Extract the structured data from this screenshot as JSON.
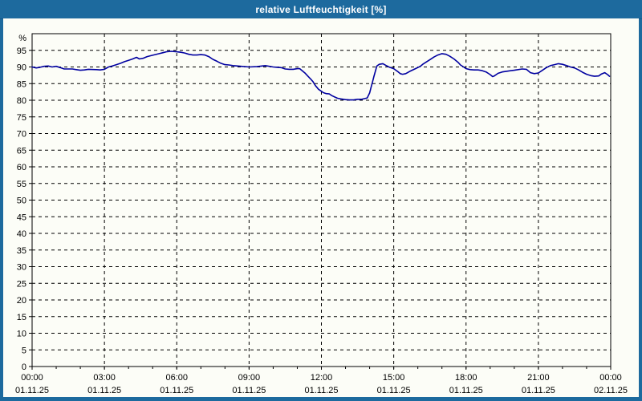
{
  "window": {
    "title": "relative Luftfeuchtigkeit [%]"
  },
  "colors": {
    "frame_blue": "#1d6a9e",
    "plot_background": "#fcfdf7",
    "axis_black": "#000000",
    "series_navy": "#0000a0"
  },
  "chart_data": {
    "type": "line",
    "title": "relative Luftfeuchtigkeit [%]",
    "ylabel": "%",
    "ylim": [
      0,
      100
    ],
    "y_tick_step": 5,
    "y_label_max": 95,
    "xlim_hours": [
      0,
      24
    ],
    "x_minor_tick_hours": 1,
    "grid": "dashed",
    "legend_position": "none",
    "x_ticks": [
      {
        "hour": 0,
        "time": "00:00",
        "date": "01.11.25"
      },
      {
        "hour": 3,
        "time": "03:00",
        "date": "01.11.25"
      },
      {
        "hour": 6,
        "time": "06:00",
        "date": "01.11.25"
      },
      {
        "hour": 9,
        "time": "09:00",
        "date": "01.11.25"
      },
      {
        "hour": 12,
        "time": "12:00",
        "date": "01.11.25"
      },
      {
        "hour": 15,
        "time": "15:00",
        "date": "01.11.25"
      },
      {
        "hour": 18,
        "time": "18:00",
        "date": "01.11.25"
      },
      {
        "hour": 21,
        "time": "21:00",
        "date": "01.11.25"
      },
      {
        "hour": 24,
        "time": "00:00",
        "date": "02.11.25"
      }
    ],
    "series": [
      {
        "name": "relative Luftfeuchtigkeit [%]",
        "color": "#0000a0",
        "points": [
          [
            0,
            90.0
          ],
          [
            0.17,
            89.7
          ],
          [
            0.33,
            89.9
          ],
          [
            0.5,
            90.2
          ],
          [
            0.67,
            90.3
          ],
          [
            0.83,
            90.0
          ],
          [
            1.0,
            90.2
          ],
          [
            1.17,
            89.8
          ],
          [
            1.33,
            89.4
          ],
          [
            1.67,
            89.4
          ],
          [
            1.83,
            89.2
          ],
          [
            2.0,
            89.0
          ],
          [
            2.17,
            89.1
          ],
          [
            2.33,
            89.3
          ],
          [
            2.67,
            89.2
          ],
          [
            2.83,
            89.1
          ],
          [
            3.0,
            89.3
          ],
          [
            3.17,
            90.0
          ],
          [
            3.33,
            90.3
          ],
          [
            3.5,
            90.7
          ],
          [
            3.67,
            91.1
          ],
          [
            3.83,
            91.6
          ],
          [
            4.0,
            92.0
          ],
          [
            4.17,
            92.4
          ],
          [
            4.33,
            92.9
          ],
          [
            4.45,
            92.4
          ],
          [
            4.6,
            92.6
          ],
          [
            4.77,
            93.1
          ],
          [
            4.93,
            93.4
          ],
          [
            5.1,
            93.7
          ],
          [
            5.27,
            94.0
          ],
          [
            5.43,
            94.3
          ],
          [
            5.6,
            94.6
          ],
          [
            5.77,
            94.7
          ],
          [
            5.97,
            94.6
          ],
          [
            6.17,
            94.4
          ],
          [
            6.33,
            94.2
          ],
          [
            6.5,
            93.8
          ],
          [
            6.67,
            93.6
          ],
          [
            6.83,
            93.6
          ],
          [
            7.0,
            93.7
          ],
          [
            7.17,
            93.6
          ],
          [
            7.33,
            93.1
          ],
          [
            7.5,
            92.3
          ],
          [
            7.67,
            91.7
          ],
          [
            7.83,
            91.1
          ],
          [
            8.0,
            90.7
          ],
          [
            8.17,
            90.6
          ],
          [
            8.33,
            90.4
          ],
          [
            8.67,
            90.2
          ],
          [
            9.0,
            90.0
          ],
          [
            9.33,
            90.1
          ],
          [
            9.67,
            90.4
          ],
          [
            10.0,
            90.0
          ],
          [
            10.17,
            89.9
          ],
          [
            10.33,
            89.8
          ],
          [
            10.5,
            89.4
          ],
          [
            10.67,
            89.3
          ],
          [
            10.83,
            89.3
          ],
          [
            11.0,
            89.5
          ],
          [
            11.1,
            89.5
          ],
          [
            11.2,
            88.9
          ],
          [
            11.33,
            88.1
          ],
          [
            11.43,
            87.3
          ],
          [
            11.55,
            86.4
          ],
          [
            11.65,
            85.6
          ],
          [
            11.75,
            84.4
          ],
          [
            11.88,
            83.3
          ],
          [
            12.0,
            82.7
          ],
          [
            12.08,
            82.3
          ],
          [
            12.2,
            82.0
          ],
          [
            12.33,
            81.9
          ],
          [
            12.43,
            81.4
          ],
          [
            12.55,
            81.0
          ],
          [
            12.67,
            80.6
          ],
          [
            12.8,
            80.4
          ],
          [
            13.0,
            80.2
          ],
          [
            13.17,
            80.1
          ],
          [
            13.33,
            80.1
          ],
          [
            13.5,
            80.3
          ],
          [
            13.67,
            80.3
          ],
          [
            13.8,
            80.5
          ],
          [
            13.9,
            80.7
          ],
          [
            14.0,
            82.2
          ],
          [
            14.06,
            83.9
          ],
          [
            14.12,
            85.5
          ],
          [
            14.18,
            87.2
          ],
          [
            14.25,
            89.0
          ],
          [
            14.3,
            90.3
          ],
          [
            14.4,
            90.8
          ],
          [
            14.55,
            91.0
          ],
          [
            14.67,
            90.5
          ],
          [
            14.83,
            89.9
          ],
          [
            15.0,
            89.5
          ],
          [
            15.17,
            88.6
          ],
          [
            15.27,
            88.0
          ],
          [
            15.37,
            87.8
          ],
          [
            15.5,
            88.0
          ],
          [
            15.67,
            88.7
          ],
          [
            15.9,
            89.5
          ],
          [
            16.1,
            90.2
          ],
          [
            16.2,
            90.8
          ],
          [
            16.33,
            91.4
          ],
          [
            16.5,
            92.2
          ],
          [
            16.67,
            93.0
          ],
          [
            16.83,
            93.6
          ],
          [
            17.0,
            94.0
          ],
          [
            17.17,
            93.8
          ],
          [
            17.33,
            93.2
          ],
          [
            17.5,
            92.4
          ],
          [
            17.67,
            91.4
          ],
          [
            17.77,
            90.6
          ],
          [
            17.9,
            90.0
          ],
          [
            18.0,
            89.5
          ],
          [
            18.17,
            89.2
          ],
          [
            18.33,
            89.1
          ],
          [
            18.5,
            89.1
          ],
          [
            18.67,
            88.9
          ],
          [
            18.83,
            88.5
          ],
          [
            19.0,
            87.7
          ],
          [
            19.1,
            87.1
          ],
          [
            19.17,
            87.3
          ],
          [
            19.33,
            88.1
          ],
          [
            19.5,
            88.5
          ],
          [
            19.67,
            88.7
          ],
          [
            20.0,
            89.0
          ],
          [
            20.33,
            89.4
          ],
          [
            20.5,
            89.3
          ],
          [
            20.67,
            88.3
          ],
          [
            20.83,
            88.0
          ],
          [
            21.0,
            88.2
          ],
          [
            21.17,
            89.0
          ],
          [
            21.33,
            89.8
          ],
          [
            21.5,
            90.4
          ],
          [
            21.67,
            90.7
          ],
          [
            21.83,
            91.0
          ],
          [
            22.0,
            90.8
          ],
          [
            22.17,
            90.4
          ],
          [
            22.33,
            90.0
          ],
          [
            22.5,
            89.7
          ],
          [
            22.67,
            89.1
          ],
          [
            22.83,
            88.4
          ],
          [
            23.0,
            87.8
          ],
          [
            23.17,
            87.4
          ],
          [
            23.33,
            87.2
          ],
          [
            23.5,
            87.3
          ],
          [
            23.62,
            87.9
          ],
          [
            23.75,
            88.3
          ],
          [
            23.87,
            87.7
          ],
          [
            23.95,
            87.2
          ]
        ]
      }
    ]
  }
}
